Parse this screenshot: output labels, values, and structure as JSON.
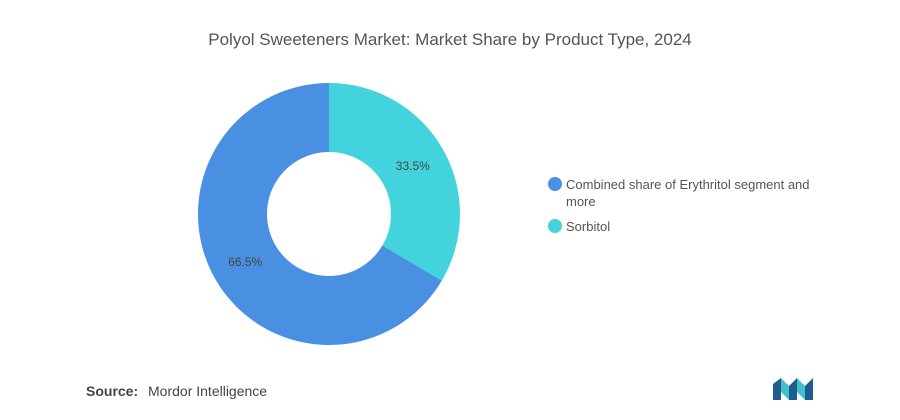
{
  "title": "Polyol Sweeteners Market: Market Share by Product Type, 2024",
  "chart_data": {
    "type": "pie",
    "donut": true,
    "title": "Polyol Sweeteners Market: Market Share by Product Type, 2024",
    "slices": [
      {
        "name": "Sorbitol",
        "value": 33.5,
        "label": "33.5%",
        "color": "#43d3dd"
      },
      {
        "name": "Combined share of Erythritol segment and more",
        "value": 66.5,
        "label": "66.5%",
        "color": "#4a90e2"
      }
    ],
    "legend_position": "right"
  },
  "legend": [
    {
      "label": "Combined share of Erythritol segment and more",
      "color": "#4a90e2"
    },
    {
      "label": "Sorbitol",
      "color": "#43d3dd"
    }
  ],
  "source": {
    "key": "Source:",
    "value": "Mordor Intelligence"
  },
  "logo": {
    "icon": "mordor-intelligence-logo-icon",
    "colors": [
      "#1f5b8e",
      "#3fc2c9"
    ]
  }
}
